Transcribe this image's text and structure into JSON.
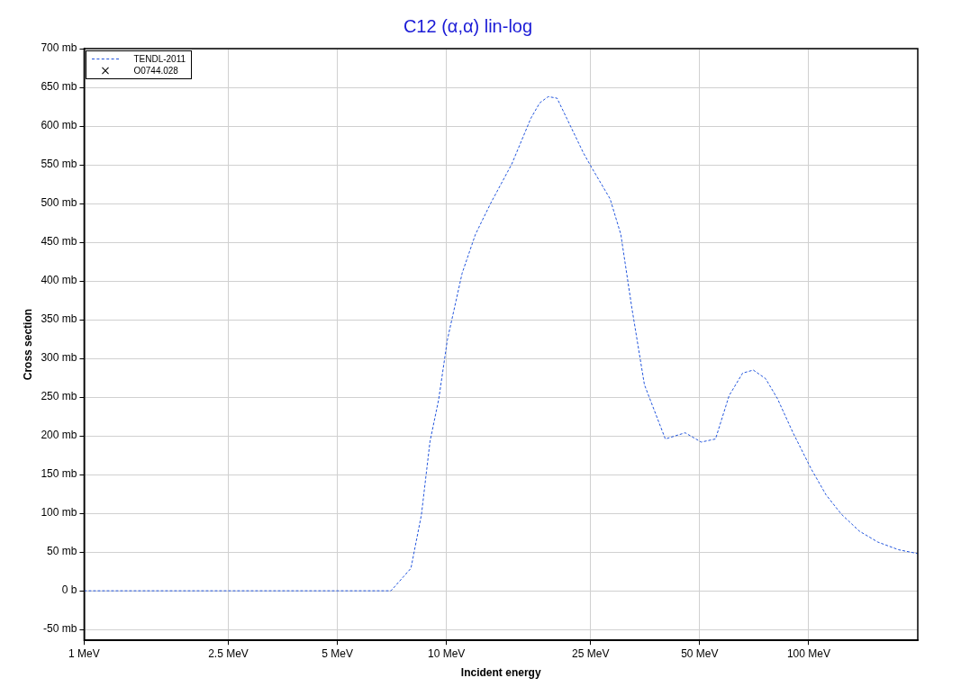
{
  "chart_data": {
    "type": "line",
    "title": "C12 (α,α) lin-log",
    "xlabel": "Incident energy",
    "ylabel": "Cross section",
    "log": "x",
    "grid": true,
    "legend": "top left",
    "x": [
      1,
      7.03,
      7.98,
      8.53,
      9.01,
      9.52,
      10.06,
      11.05,
      12.02,
      13.27,
      15.15,
      17.1,
      18.1,
      19.1,
      20.2,
      23.9,
      25.2,
      28.3,
      30.3,
      32.5,
      35.2,
      40.2,
      45.6,
      50.5,
      55.3,
      60.3,
      65.7,
      70.3,
      76,
      82,
      90.3,
      101.4,
      111.6,
      123,
      138,
      155,
      177,
      200
    ],
    "series": [
      {
        "name": "TENDL-2011",
        "type": "line",
        "color": "#2255dd",
        "line_style": "dashed",
        "marker": "none",
        "values": [
          0,
          0,
          29,
          98,
          193,
          247,
          324,
          410,
          460,
          501,
          551,
          610,
          630,
          638,
          636,
          565,
          546,
          506,
          460,
          365,
          266,
          196,
          204,
          192,
          196,
          252,
          281,
          285,
          274,
          248,
          205,
          158,
          124,
          99,
          77,
          63,
          53,
          48
        ]
      },
      {
        "name": "O0744.028",
        "type": "scatter",
        "color": "#000000",
        "marker": "cross",
        "values": [
          null,
          null,
          null,
          null,
          null,
          null,
          null,
          null,
          null,
          null,
          null,
          null,
          null,
          null,
          null,
          null,
          null,
          null,
          null,
          null,
          null,
          null,
          null,
          null,
          null,
          null,
          null,
          null,
          null,
          null,
          null,
          null,
          null,
          null,
          null,
          null,
          null,
          null
        ]
      }
    ],
    "xlim": [
      1,
      200
    ],
    "xticks": [
      {
        "value": 1,
        "label": "1 MeV"
      },
      {
        "value": 2.5,
        "label": "2.5 MeV"
      },
      {
        "value": 5,
        "label": "5 MeV"
      },
      {
        "value": 10,
        "label": "10 MeV"
      },
      {
        "value": 25,
        "label": "25 MeV"
      },
      {
        "value": 50,
        "label": "50 MeV"
      },
      {
        "value": 100,
        "label": "100 MeV"
      }
    ],
    "ylim": [
      -64,
      700
    ],
    "yticks": [
      {
        "value": -50,
        "label": "-50 mb"
      },
      {
        "value": 0,
        "label": "0 b"
      },
      {
        "value": 50,
        "label": "50 mb"
      },
      {
        "value": 100,
        "label": "100 mb"
      },
      {
        "value": 150,
        "label": "150 mb"
      },
      {
        "value": 200,
        "label": "200 mb"
      },
      {
        "value": 250,
        "label": "250 mb"
      },
      {
        "value": 300,
        "label": "300 mb"
      },
      {
        "value": 350,
        "label": "350 mb"
      },
      {
        "value": 400,
        "label": "400 mb"
      },
      {
        "value": 450,
        "label": "450 mb"
      },
      {
        "value": 500,
        "label": "500 mb"
      },
      {
        "value": 550,
        "label": "550 mb"
      },
      {
        "value": 600,
        "label": "600 mb"
      },
      {
        "value": 650,
        "label": "650 mb"
      },
      {
        "value": 700,
        "label": "700 mb"
      }
    ]
  }
}
